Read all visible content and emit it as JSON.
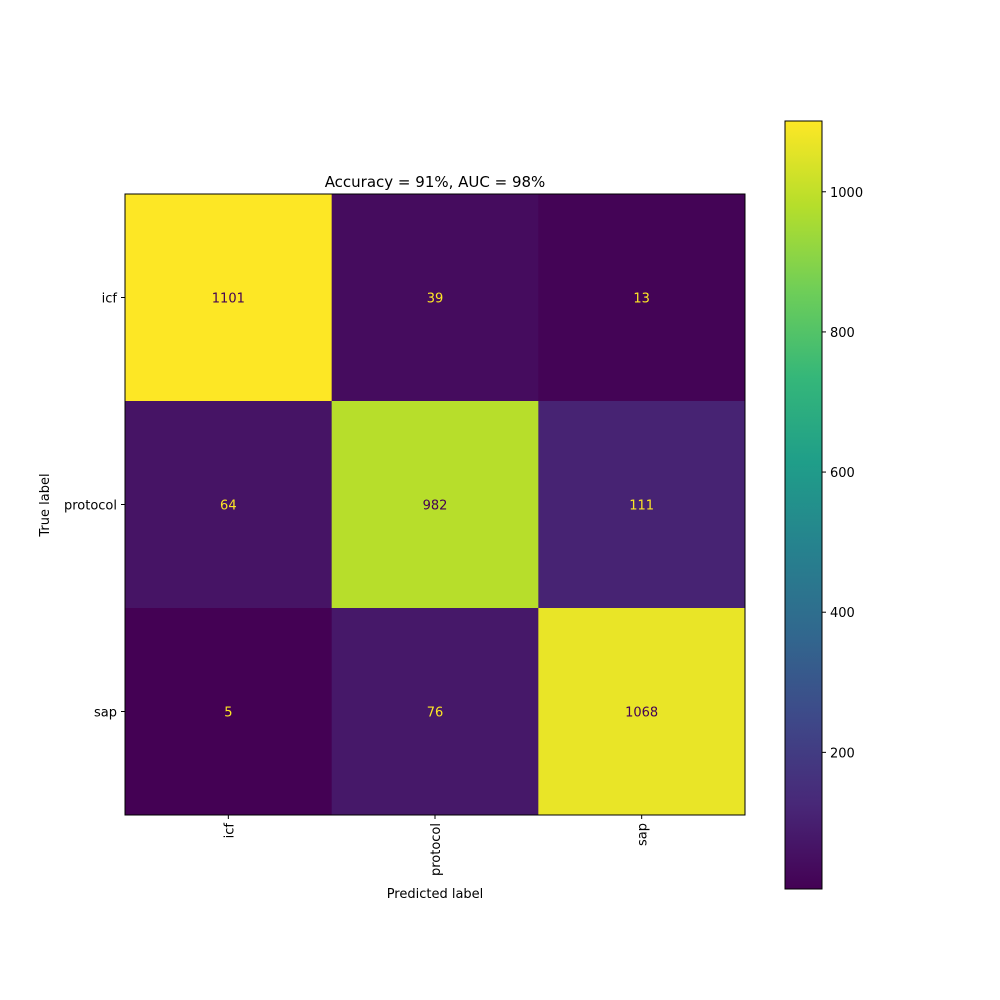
{
  "chart_data": {
    "type": "heatmap",
    "title": "Accuracy = 91%, AUC = 98%",
    "xlabel": "Predicted label",
    "ylabel": "True label",
    "x_categories": [
      "icf",
      "protocol",
      "sap"
    ],
    "y_categories": [
      "icf",
      "protocol",
      "sap"
    ],
    "values": [
      [
        1101,
        39,
        13
      ],
      [
        64,
        982,
        111
      ],
      [
        5,
        76,
        1068
      ]
    ],
    "colormap": "viridis",
    "color_range": [
      5,
      1101
    ],
    "colorbar_ticks": [
      200,
      400,
      600,
      800,
      1000
    ],
    "low_value_text_color": "#fde725",
    "high_value_text_color": "#440154"
  }
}
